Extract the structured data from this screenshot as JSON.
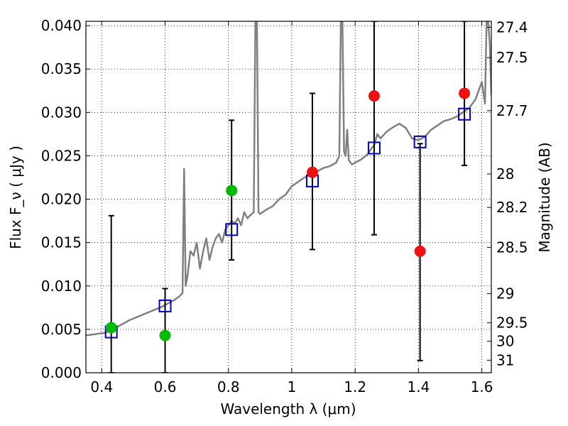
{
  "chart_data": {
    "type": "scatter",
    "title": "",
    "xlabel": "Wavelength  λ (μm)",
    "ylabel": "Flux  F_ν  ( μJy )",
    "ylabel_right": "Magnitude (AB)",
    "xlim": [
      0.35,
      1.63
    ],
    "ylim": [
      0.0,
      0.0405
    ],
    "grid": true,
    "x_ticks": [
      0.4,
      0.6,
      0.8,
      1.0,
      1.2,
      1.4,
      1.6
    ],
    "x_tick_labels": [
      "0.4",
      "0.6",
      "0.8",
      "1",
      "1.2",
      "1.4",
      "1.6"
    ],
    "y_ticks": [
      0.0,
      0.005,
      0.01,
      0.015,
      0.02,
      0.025,
      0.03,
      0.035,
      0.04
    ],
    "y_tick_labels": [
      "0.000",
      "0.005",
      "0.010",
      "0.015",
      "0.020",
      "0.025",
      "0.030",
      "0.035",
      "0.040"
    ],
    "right_ticks": [
      {
        "label": "27.4",
        "mag": 27.4
      },
      {
        "label": "27.5",
        "mag": 27.5
      },
      {
        "label": "27.7",
        "mag": 27.7
      },
      {
        "label": "28",
        "mag": 28.0
      },
      {
        "label": "28.2",
        "mag": 28.2
      },
      {
        "label": "28.5",
        "mag": 28.5
      },
      {
        "label": "29",
        "mag": 29.0
      },
      {
        "label": "29.5",
        "mag": 29.5
      },
      {
        "label": "30",
        "mag": 30.0
      },
      {
        "label": "31",
        "mag": 31.0
      }
    ],
    "series": [
      {
        "style": "line",
        "color": "#808080",
        "x": [
          0.35,
          0.37,
          0.39,
          0.41,
          0.43,
          0.45,
          0.47,
          0.49,
          0.51,
          0.53,
          0.55,
          0.57,
          0.59,
          0.61,
          0.63,
          0.645,
          0.655,
          0.66,
          0.665,
          0.67,
          0.68,
          0.69,
          0.7,
          0.71,
          0.72,
          0.73,
          0.74,
          0.75,
          0.76,
          0.77,
          0.78,
          0.79,
          0.8,
          0.81,
          0.82,
          0.83,
          0.84,
          0.85,
          0.86,
          0.87,
          0.88,
          0.885,
          0.89,
          0.895,
          0.9,
          0.92,
          0.94,
          0.96,
          0.98,
          1.0,
          1.02,
          1.04,
          1.06,
          1.08,
          1.1,
          1.12,
          1.14,
          1.15,
          1.155,
          1.16,
          1.165,
          1.17,
          1.175,
          1.18,
          1.19,
          1.2,
          1.22,
          1.24,
          1.25,
          1.26,
          1.27,
          1.28,
          1.3,
          1.32,
          1.34,
          1.36,
          1.38,
          1.4,
          1.42,
          1.44,
          1.46,
          1.48,
          1.5,
          1.52,
          1.54,
          1.56,
          1.58,
          1.6,
          1.61,
          1.615,
          1.62,
          1.625,
          1.63
        ],
        "y": [
          0.0043,
          0.0044,
          0.0045,
          0.0046,
          0.0049,
          0.0053,
          0.0057,
          0.0061,
          0.0064,
          0.0067,
          0.007,
          0.0073,
          0.0076,
          0.008,
          0.0084,
          0.0088,
          0.0092,
          0.0235,
          0.01,
          0.011,
          0.014,
          0.0135,
          0.015,
          0.012,
          0.014,
          0.0155,
          0.013,
          0.0145,
          0.0155,
          0.016,
          0.015,
          0.0165,
          0.017,
          0.0175,
          0.0172,
          0.0178,
          0.017,
          0.0185,
          0.0178,
          0.0182,
          0.0185,
          0.0405,
          0.0405,
          0.0185,
          0.0183,
          0.0188,
          0.0192,
          0.02,
          0.0205,
          0.0215,
          0.022,
          0.0225,
          0.0228,
          0.0232,
          0.0236,
          0.0238,
          0.0242,
          0.025,
          0.0405,
          0.0405,
          0.0255,
          0.025,
          0.028,
          0.0245,
          0.024,
          0.0242,
          0.0246,
          0.0252,
          0.0258,
          0.0262,
          0.0275,
          0.027,
          0.0278,
          0.0283,
          0.0287,
          0.0282,
          0.027,
          0.0268,
          0.0272,
          0.028,
          0.0285,
          0.029,
          0.0292,
          0.0295,
          0.03,
          0.0305,
          0.0315,
          0.0335,
          0.031,
          0.0405,
          0.0405,
          0.038,
          0.032
        ]
      },
      {
        "style": "open-square",
        "color": "#0000bb",
        "x": [
          0.43,
          0.6,
          0.81,
          1.065,
          1.26,
          1.405,
          1.545
        ],
        "y": [
          0.0047,
          0.0077,
          0.0165,
          0.0221,
          0.0259,
          0.0266,
          0.0298
        ]
      },
      {
        "style": "filled-circle",
        "color": "#00bb00",
        "x": [
          0.43,
          0.6,
          0.81
        ],
        "y": [
          0.0052,
          0.0043,
          0.021
        ]
      },
      {
        "style": "filled-circle",
        "color": "#ee1111",
        "x": [
          1.065,
          1.26,
          1.405,
          1.545
        ],
        "y": [
          0.0231,
          0.0319,
          0.014,
          0.0322
        ]
      }
    ],
    "error_bars": [
      {
        "x": 0.43,
        "low": 0.0,
        "high": 0.0181
      },
      {
        "x": 0.6,
        "low": 0.0,
        "high": 0.0097
      },
      {
        "x": 0.81,
        "low": 0.013,
        "high": 0.0291
      },
      {
        "x": 1.065,
        "low": 0.0142,
        "high": 0.0322
      },
      {
        "x": 1.26,
        "low": 0.0159,
        "high": 0.0405
      },
      {
        "x": 1.405,
        "low": 0.0014,
        "high": 0.0264
      },
      {
        "x": 1.545,
        "low": 0.0239,
        "high": 0.0405
      }
    ]
  }
}
